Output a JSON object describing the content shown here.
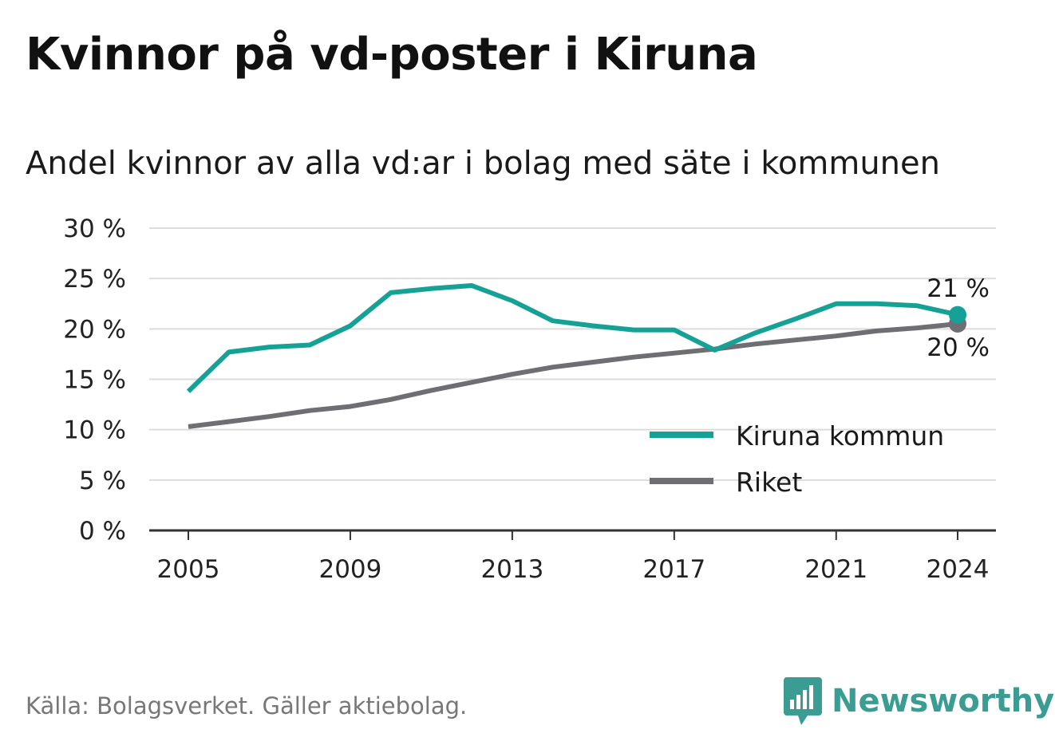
{
  "title": "Kvinnor på vd-poster i Kiruna",
  "subtitle": "Andel kvinnor av alla vd:ar i bolag med säte i kommunen",
  "source": "Källa: Bolagsverket. Gäller aktiebolag.",
  "brand": "Newsworthy",
  "colors": {
    "kiruna": "#16a196",
    "riket": "#6f6e73",
    "grid": "#dcdcdc",
    "axis": "#333333"
  },
  "chart_data": {
    "type": "line",
    "title": "Kvinnor på vd-poster i Kiruna",
    "subtitle": "Andel kvinnor av alla vd:ar i bolag med säte i kommunen",
    "xlabel": "",
    "ylabel": "",
    "ylim": [
      0,
      30
    ],
    "yticks": [
      0,
      5,
      10,
      15,
      20,
      25,
      30
    ],
    "ytick_labels": [
      "0 %",
      "5 %",
      "10 %",
      "15 %",
      "20 %",
      "25 %",
      "30 %"
    ],
    "xticks": [
      2005,
      2009,
      2013,
      2017,
      2021,
      2024
    ],
    "x": [
      2005,
      2006,
      2007,
      2008,
      2009,
      2010,
      2011,
      2012,
      2013,
      2014,
      2015,
      2016,
      2017,
      2018,
      2019,
      2020,
      2021,
      2022,
      2023,
      2024
    ],
    "grid": true,
    "legend_position": "bottom-right",
    "series": [
      {
        "name": "Kiruna kommun",
        "color": "#16a196",
        "values": [
          13.8,
          17.7,
          18.2,
          18.4,
          20.3,
          23.6,
          24.0,
          24.3,
          22.8,
          20.8,
          20.3,
          19.9,
          19.9,
          17.9,
          19.6,
          21.0,
          22.5,
          22.5,
          22.3,
          21.4
        ],
        "end_label": "21 %"
      },
      {
        "name": "Riket",
        "color": "#6f6e73",
        "values": [
          10.3,
          10.8,
          11.3,
          11.9,
          12.3,
          13.0,
          13.9,
          14.7,
          15.5,
          16.2,
          16.7,
          17.2,
          17.6,
          18.0,
          18.5,
          18.9,
          19.3,
          19.8,
          20.1,
          20.5
        ],
        "end_label": "20 %"
      }
    ]
  }
}
